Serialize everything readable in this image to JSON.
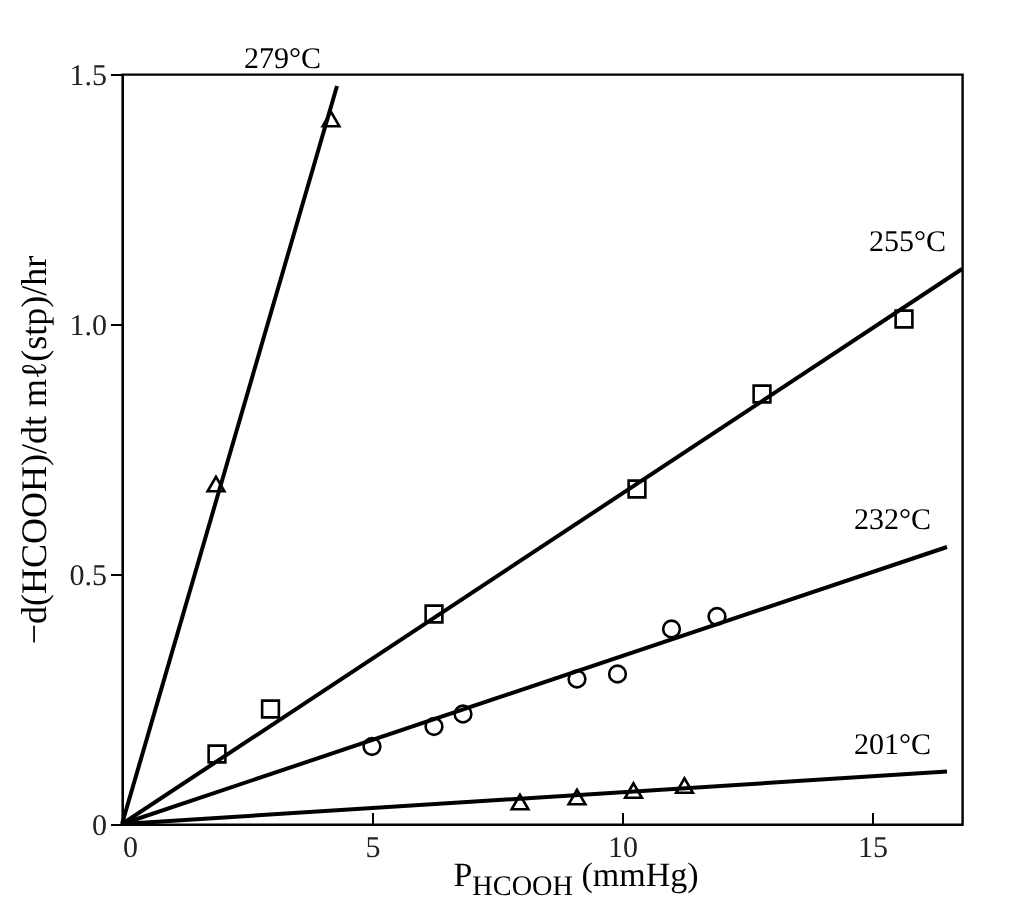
{
  "chart_data": {
    "type": "scatter",
    "xlabel": "P$_{HCOOH}$ (mmHg)",
    "ylabel": "−d(HCOOH)/dt mℓ(stp)/hr",
    "xlim": [
      0,
      16.8
    ],
    "ylim": [
      0,
      1.5
    ],
    "xticks": [
      0,
      5,
      10,
      15
    ],
    "yticks": [
      0,
      0.5,
      {
        "value": 1,
        "label": "1.0"
      },
      1.5
    ],
    "series": [
      {
        "marker": "triangle",
        "color": "#000000",
        "x": [
          1.88,
          4.18
        ],
        "values": [
          0.68,
          1.41
        ]
      },
      {
        "marker": "square",
        "color": "#000000",
        "x": [
          1.9,
          2.97,
          6.24,
          10.3,
          12.8,
          15.64
        ],
        "values": [
          0.14,
          0.23,
          0.42,
          0.67,
          0.86,
          1.01
        ]
      },
      {
        "marker": "circle",
        "color": "#000000",
        "x": [
          5.0,
          6.24,
          6.82,
          9.1,
          9.91,
          10.99,
          11.9
        ],
        "values": [
          0.155,
          0.195,
          0.22,
          0.29,
          0.3,
          0.39,
          0.415
        ]
      },
      {
        "marker": "triangle",
        "color": "#000000",
        "x": [
          7.96,
          9.1,
          10.23,
          11.25
        ],
        "values": [
          0.044,
          0.054,
          0.067,
          0.077
        ]
      },
      {
        "type": "line",
        "name": "279°C",
        "color": "#000000",
        "x": [
          0,
          4.3
        ],
        "values": [
          0,
          1.476
        ]
      },
      {
        "type": "line",
        "name": "255°C",
        "color": "#000000",
        "x": [
          0,
          16.8
        ],
        "values": [
          0,
          1.11
        ]
      },
      {
        "type": "line",
        "name": "232°C",
        "color": "#000000",
        "x": [
          0,
          16.5
        ],
        "values": [
          0,
          0.554
        ]
      },
      {
        "type": "line",
        "name": "201°C",
        "color": "#000000",
        "x": [
          0,
          16.5
        ],
        "values": [
          0,
          0.105
        ]
      }
    ]
  }
}
